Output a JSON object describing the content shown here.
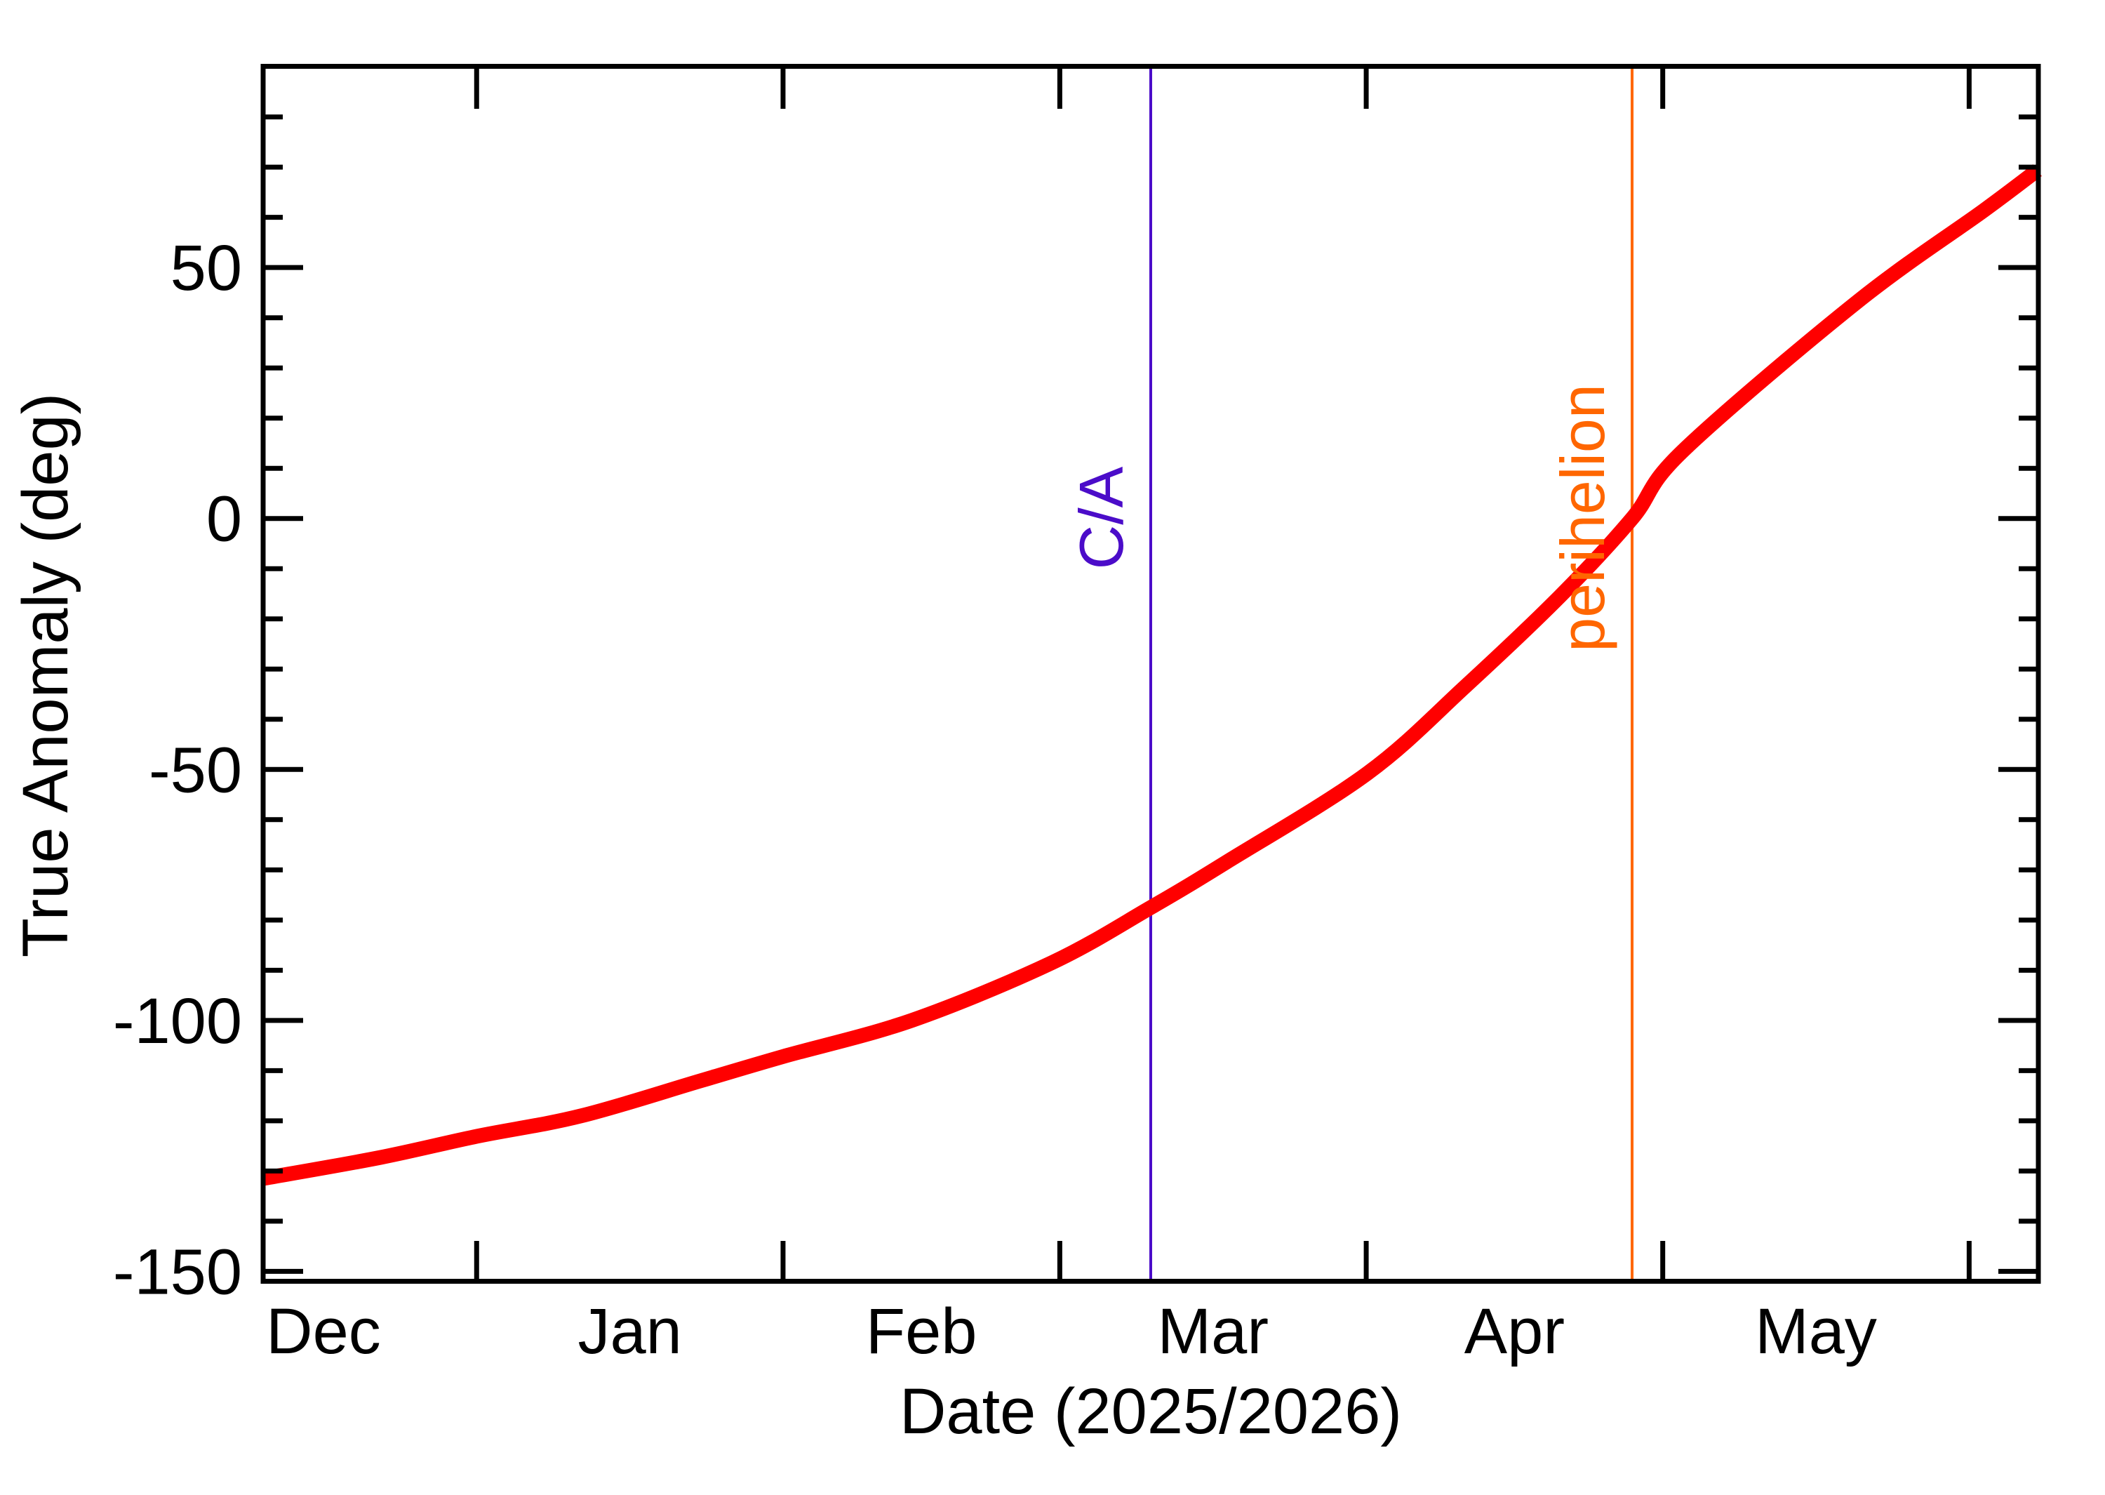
{
  "figure": {
    "background": "#ffffff",
    "frame_color": "#000000"
  },
  "chart_data": {
    "type": "line",
    "title": "",
    "xlabel": "Date (2025/2026)",
    "ylabel": "True Anomaly (deg)",
    "x_unit": "days_from_2026_Jan_1",
    "xlim": [
      -21.6,
      158.0
    ],
    "ylim": [
      -151.9,
      89.6
    ],
    "grid": false,
    "y_major_ticks": [
      {
        "value": 50,
        "label": "50"
      },
      {
        "value": 0,
        "label": "0"
      },
      {
        "value": -50,
        "label": "-50"
      },
      {
        "value": -100,
        "label": "-100"
      },
      {
        "value": -150,
        "label": "-150"
      }
    ],
    "y_minor_tick_step": 10,
    "x_month_ticks": [
      {
        "day": 0,
        "month_start": "2026-Jan-01"
      },
      {
        "day": 31,
        "month_start": "2026-Feb-01"
      },
      {
        "day": 59,
        "month_start": "2026-Mar-01"
      },
      {
        "day": 90,
        "month_start": "2026-Apr-01"
      },
      {
        "day": 120,
        "month_start": "2026-May-01"
      },
      {
        "day": 151,
        "month_start": "2026-Jun-01"
      }
    ],
    "x_month_labels": [
      {
        "label": "Dec",
        "day": -15.5
      },
      {
        "label": "Jan",
        "day": 15.5
      },
      {
        "label": "Feb",
        "day": 45
      },
      {
        "label": "Mar",
        "day": 74.5
      },
      {
        "label": "Apr",
        "day": 105
      },
      {
        "label": "May",
        "day": 135.5
      }
    ],
    "series": [
      {
        "name": "true-anomaly",
        "color": "#ff0000",
        "stroke_width": 21,
        "points": [
          [
            -21.6,
            -131.5
          ],
          [
            -10.0,
            -127.4
          ],
          [
            0.0,
            -123.1
          ],
          [
            10.6,
            -119.0
          ],
          [
            22.7,
            -112.0
          ],
          [
            31.0,
            -107.2
          ],
          [
            44.0,
            -100.0
          ],
          [
            58.2,
            -88.5
          ],
          [
            68.2,
            -77.5
          ],
          [
            75.9,
            -68.4
          ],
          [
            90.1,
            -50.8
          ],
          [
            100.0,
            -33.5
          ],
          [
            109.6,
            -15.5
          ],
          [
            116.9,
            0.0
          ],
          [
            122.0,
            13.4
          ],
          [
            139.7,
            43.2
          ],
          [
            152.5,
            61.4
          ],
          [
            157.9,
            69.4
          ]
        ]
      }
    ],
    "annotations": [
      {
        "id": "ca",
        "label": "C/A",
        "day": 68.2,
        "date": "2026-Mar-10",
        "color": "#4b0cc9",
        "line_width": 4
      },
      {
        "id": "perihelion",
        "label": "perihelion",
        "day": 116.9,
        "date": "2026-Apr-28",
        "color": "#ff6600",
        "line_width": 4
      }
    ]
  }
}
